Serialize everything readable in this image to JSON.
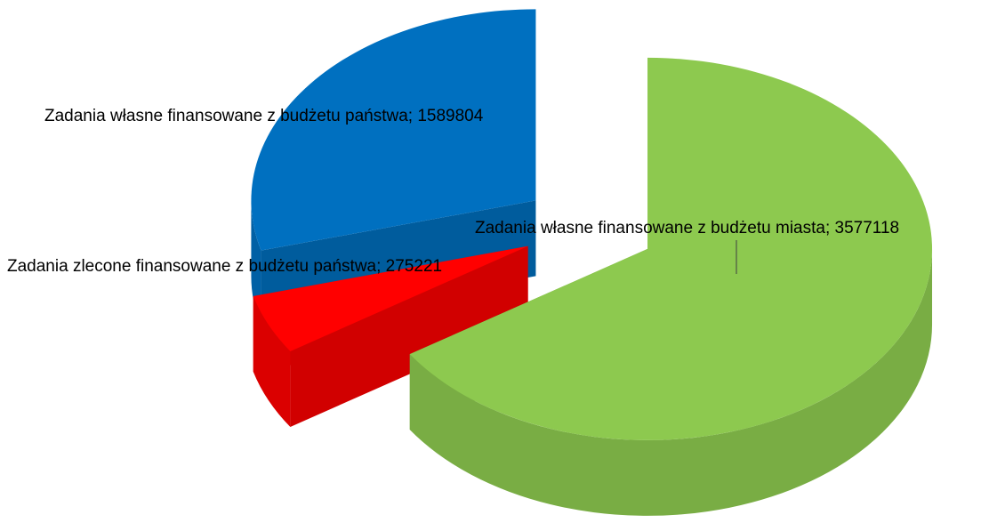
{
  "chart_data": {
    "type": "pie3d",
    "values": [
      3577118,
      275221,
      1589804
    ],
    "value_labels": [
      "Zadania własne finansowane z budżetu miasta; 3577118",
      "Zadania zlecone finansowane z budżetu państwa; 275221",
      "Zadania własne finansowane z budżetu państwa; 1589804"
    ],
    "colors": [
      "#8dc94f",
      "#ff0000",
      "#0070c0"
    ]
  }
}
